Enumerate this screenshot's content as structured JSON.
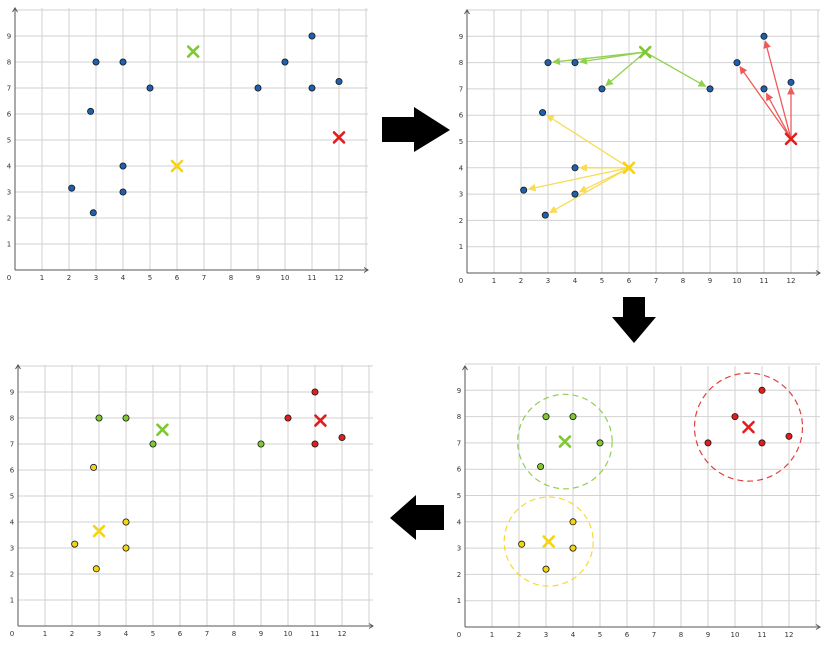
{
  "colors": {
    "blue": "#1f5fae",
    "green": "#7ec832",
    "yellow": "#f5d414",
    "red": "#e11d1d",
    "arrow_green": "#8fd14f",
    "arrow_yellow": "#f7dc55",
    "arrow_red": "#ee5a5a",
    "black": "#000000"
  },
  "axis": {
    "x_ticks": [
      "0",
      "1",
      "2",
      "3",
      "4",
      "5",
      "6",
      "7",
      "8",
      "9",
      "10",
      "11",
      "12"
    ],
    "y_ticks": [
      "0",
      "1",
      "2",
      "3",
      "4",
      "5",
      "6",
      "7",
      "8",
      "9"
    ]
  },
  "flow_arrows": [
    "right-arrow-icon",
    "down-arrow-icon",
    "left-arrow-icon"
  ],
  "chart_data": [
    {
      "type": "scatter",
      "panel": "initial-centroids",
      "xlim": [
        0,
        13
      ],
      "ylim": [
        0,
        10
      ],
      "grid": true,
      "points": [
        {
          "x": 2.1,
          "y": 3.15,
          "c": "blue"
        },
        {
          "x": 2.9,
          "y": 2.2,
          "c": "blue"
        },
        {
          "x": 2.8,
          "y": 6.1,
          "c": "blue"
        },
        {
          "x": 3.0,
          "y": 8.0,
          "c": "blue"
        },
        {
          "x": 4.0,
          "y": 8.0,
          "c": "blue"
        },
        {
          "x": 4.0,
          "y": 4.0,
          "c": "blue"
        },
        {
          "x": 4.0,
          "y": 3.0,
          "c": "blue"
        },
        {
          "x": 5.0,
          "y": 7.0,
          "c": "blue"
        },
        {
          "x": 9.0,
          "y": 7.0,
          "c": "blue"
        },
        {
          "x": 10.0,
          "y": 8.0,
          "c": "blue"
        },
        {
          "x": 11.0,
          "y": 9.0,
          "c": "blue"
        },
        {
          "x": 11.0,
          "y": 7.0,
          "c": "blue"
        },
        {
          "x": 12.0,
          "y": 7.25,
          "c": "blue"
        }
      ],
      "centroids": [
        {
          "x": 6.6,
          "y": 8.4,
          "c": "green"
        },
        {
          "x": 6.0,
          "y": 4.0,
          "c": "yellow"
        },
        {
          "x": 12.0,
          "y": 5.1,
          "c": "red"
        }
      ]
    },
    {
      "type": "scatter",
      "panel": "distance-vectors",
      "xlim": [
        0,
        13
      ],
      "ylim": [
        0,
        10
      ],
      "grid": true,
      "points": [
        {
          "x": 2.1,
          "y": 3.15,
          "c": "blue"
        },
        {
          "x": 2.9,
          "y": 2.2,
          "c": "blue"
        },
        {
          "x": 2.8,
          "y": 6.1,
          "c": "blue"
        },
        {
          "x": 3.0,
          "y": 8.0,
          "c": "blue"
        },
        {
          "x": 4.0,
          "y": 8.0,
          "c": "blue"
        },
        {
          "x": 4.0,
          "y": 4.0,
          "c": "blue"
        },
        {
          "x": 4.0,
          "y": 3.0,
          "c": "blue"
        },
        {
          "x": 5.0,
          "y": 7.0,
          "c": "blue"
        },
        {
          "x": 9.0,
          "y": 7.0,
          "c": "blue"
        },
        {
          "x": 10.0,
          "y": 8.0,
          "c": "blue"
        },
        {
          "x": 11.0,
          "y": 9.0,
          "c": "blue"
        },
        {
          "x": 11.0,
          "y": 7.0,
          "c": "blue"
        },
        {
          "x": 12.0,
          "y": 7.25,
          "c": "blue"
        }
      ],
      "centroids": [
        {
          "x": 6.6,
          "y": 8.4,
          "c": "green"
        },
        {
          "x": 6.0,
          "y": 4.0,
          "c": "yellow"
        },
        {
          "x": 12.0,
          "y": 5.1,
          "c": "red"
        }
      ],
      "arrows": [
        {
          "from": [
            6.6,
            8.4
          ],
          "to": [
            3.0,
            8.0
          ],
          "c": "arrow_green"
        },
        {
          "from": [
            6.6,
            8.4
          ],
          "to": [
            4.0,
            8.0
          ],
          "c": "arrow_green"
        },
        {
          "from": [
            6.6,
            8.4
          ],
          "to": [
            5.0,
            7.0
          ],
          "c": "arrow_green"
        },
        {
          "from": [
            6.6,
            8.4
          ],
          "to": [
            9.0,
            7.0
          ],
          "c": "arrow_green"
        },
        {
          "from": [
            6.0,
            4.0
          ],
          "to": [
            2.8,
            6.1
          ],
          "c": "arrow_yellow"
        },
        {
          "from": [
            6.0,
            4.0
          ],
          "to": [
            2.1,
            3.15
          ],
          "c": "arrow_yellow"
        },
        {
          "from": [
            6.0,
            4.0
          ],
          "to": [
            2.9,
            2.2
          ],
          "c": "arrow_yellow"
        },
        {
          "from": [
            6.0,
            4.0
          ],
          "to": [
            4.0,
            4.0
          ],
          "c": "arrow_yellow"
        },
        {
          "from": [
            6.0,
            4.0
          ],
          "to": [
            4.0,
            3.0
          ],
          "c": "arrow_yellow"
        },
        {
          "from": [
            12.0,
            5.1
          ],
          "to": [
            10.0,
            8.0
          ],
          "c": "arrow_red"
        },
        {
          "from": [
            12.0,
            5.1
          ],
          "to": [
            11.0,
            9.0
          ],
          "c": "arrow_red"
        },
        {
          "from": [
            12.0,
            5.1
          ],
          "to": [
            11.0,
            7.0
          ],
          "c": "arrow_red"
        },
        {
          "from": [
            12.0,
            5.1
          ],
          "to": [
            12.0,
            7.25
          ],
          "c": "arrow_red"
        }
      ]
    },
    {
      "type": "scatter",
      "panel": "assigned-clusters",
      "xlim": [
        0,
        13
      ],
      "ylim": [
        0,
        10
      ],
      "grid": true,
      "points": [
        {
          "x": 2.1,
          "y": 3.15,
          "c": "yellow"
        },
        {
          "x": 2.9,
          "y": 2.2,
          "c": "yellow"
        },
        {
          "x": 2.8,
          "y": 6.1,
          "c": "yellow"
        },
        {
          "x": 3.0,
          "y": 8.0,
          "c": "green"
        },
        {
          "x": 4.0,
          "y": 8.0,
          "c": "green"
        },
        {
          "x": 4.0,
          "y": 4.0,
          "c": "yellow"
        },
        {
          "x": 4.0,
          "y": 3.0,
          "c": "yellow"
        },
        {
          "x": 5.0,
          "y": 7.0,
          "c": "green"
        },
        {
          "x": 9.0,
          "y": 7.0,
          "c": "green"
        },
        {
          "x": 10.0,
          "y": 8.0,
          "c": "red"
        },
        {
          "x": 11.0,
          "y": 9.0,
          "c": "red"
        },
        {
          "x": 11.0,
          "y": 7.0,
          "c": "red"
        },
        {
          "x": 12.0,
          "y": 7.25,
          "c": "red"
        }
      ],
      "centroids": [
        {
          "x": 5.35,
          "y": 7.55,
          "c": "green"
        },
        {
          "x": 3.0,
          "y": 3.65,
          "c": "yellow"
        },
        {
          "x": 11.2,
          "y": 7.9,
          "c": "red"
        }
      ]
    },
    {
      "type": "scatter",
      "panel": "final-clusters",
      "xlim": [
        0,
        13
      ],
      "ylim": [
        0,
        10
      ],
      "grid": true,
      "points": [
        {
          "x": 2.1,
          "y": 3.15,
          "c": "yellow"
        },
        {
          "x": 3.0,
          "y": 2.2,
          "c": "yellow"
        },
        {
          "x": 4.0,
          "y": 4.0,
          "c": "yellow"
        },
        {
          "x": 4.0,
          "y": 3.0,
          "c": "yellow"
        },
        {
          "x": 2.8,
          "y": 6.1,
          "c": "green"
        },
        {
          "x": 3.0,
          "y": 8.0,
          "c": "green"
        },
        {
          "x": 4.0,
          "y": 8.0,
          "c": "green"
        },
        {
          "x": 5.0,
          "y": 7.0,
          "c": "green"
        },
        {
          "x": 9.0,
          "y": 7.0,
          "c": "red"
        },
        {
          "x": 10.0,
          "y": 8.0,
          "c": "red"
        },
        {
          "x": 11.0,
          "y": 9.0,
          "c": "red"
        },
        {
          "x": 11.0,
          "y": 7.0,
          "c": "red"
        },
        {
          "x": 12.0,
          "y": 7.25,
          "c": "red"
        }
      ],
      "centroids": [
        {
          "x": 3.7,
          "y": 7.05,
          "c": "green"
        },
        {
          "x": 3.1,
          "y": 3.25,
          "c": "yellow"
        },
        {
          "x": 10.5,
          "y": 7.6,
          "c": "red"
        }
      ],
      "circles": [
        {
          "x": 3.7,
          "y": 7.05,
          "r": 1.75,
          "c": "green"
        },
        {
          "x": 3.1,
          "y": 3.25,
          "r": 1.65,
          "c": "yellow"
        },
        {
          "x": 10.5,
          "y": 7.6,
          "r": 2.0,
          "c": "red"
        }
      ]
    }
  ]
}
